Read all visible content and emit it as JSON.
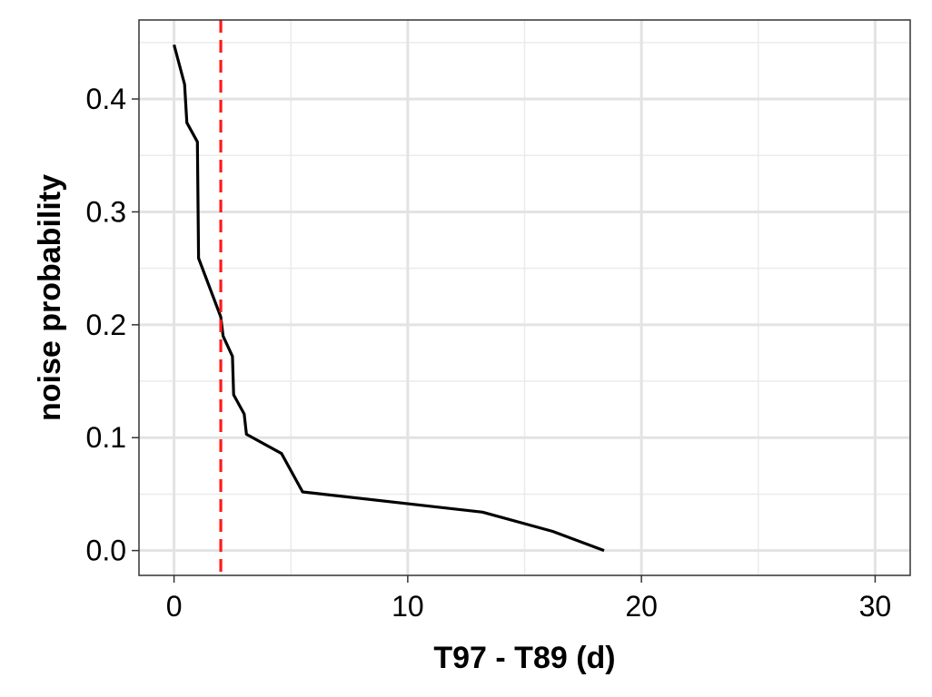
{
  "chart_data": {
    "type": "line",
    "title": "",
    "xlabel": "T97 - T89 (d)",
    "ylabel": "noise probability",
    "xlim": [
      -1.5,
      31.5
    ],
    "ylim": [
      -0.022,
      0.47
    ],
    "x_ticks": [
      0,
      10,
      20,
      30
    ],
    "x_tick_labels": [
      "0",
      "10",
      "20",
      "30"
    ],
    "y_ticks": [
      0.0,
      0.1,
      0.2,
      0.3,
      0.4
    ],
    "y_tick_labels": [
      "0.0",
      "0.1",
      "0.2",
      "0.3",
      "0.4"
    ],
    "x_minor_ticks": [
      5,
      15,
      25
    ],
    "y_minor_ticks": [
      0.05,
      0.15,
      0.25,
      0.35,
      0.45
    ],
    "grid": true,
    "series": [
      {
        "color": "#000000",
        "x": [
          0.0,
          0.45,
          0.55,
          1.0,
          1.05,
          2.0,
          2.1,
          2.5,
          2.55,
          3.0,
          3.1,
          4.6,
          5.5,
          13.2,
          16.2,
          18.4
        ],
        "y": [
          0.448,
          0.413,
          0.379,
          0.362,
          0.259,
          0.207,
          0.19,
          0.172,
          0.138,
          0.121,
          0.103,
          0.086,
          0.052,
          0.034,
          0.017,
          0.0
        ]
      }
    ],
    "reference_lines": [
      {
        "orientation": "vertical",
        "x": 2.0,
        "color": "#ff1a1a",
        "style": "dashed"
      }
    ]
  }
}
